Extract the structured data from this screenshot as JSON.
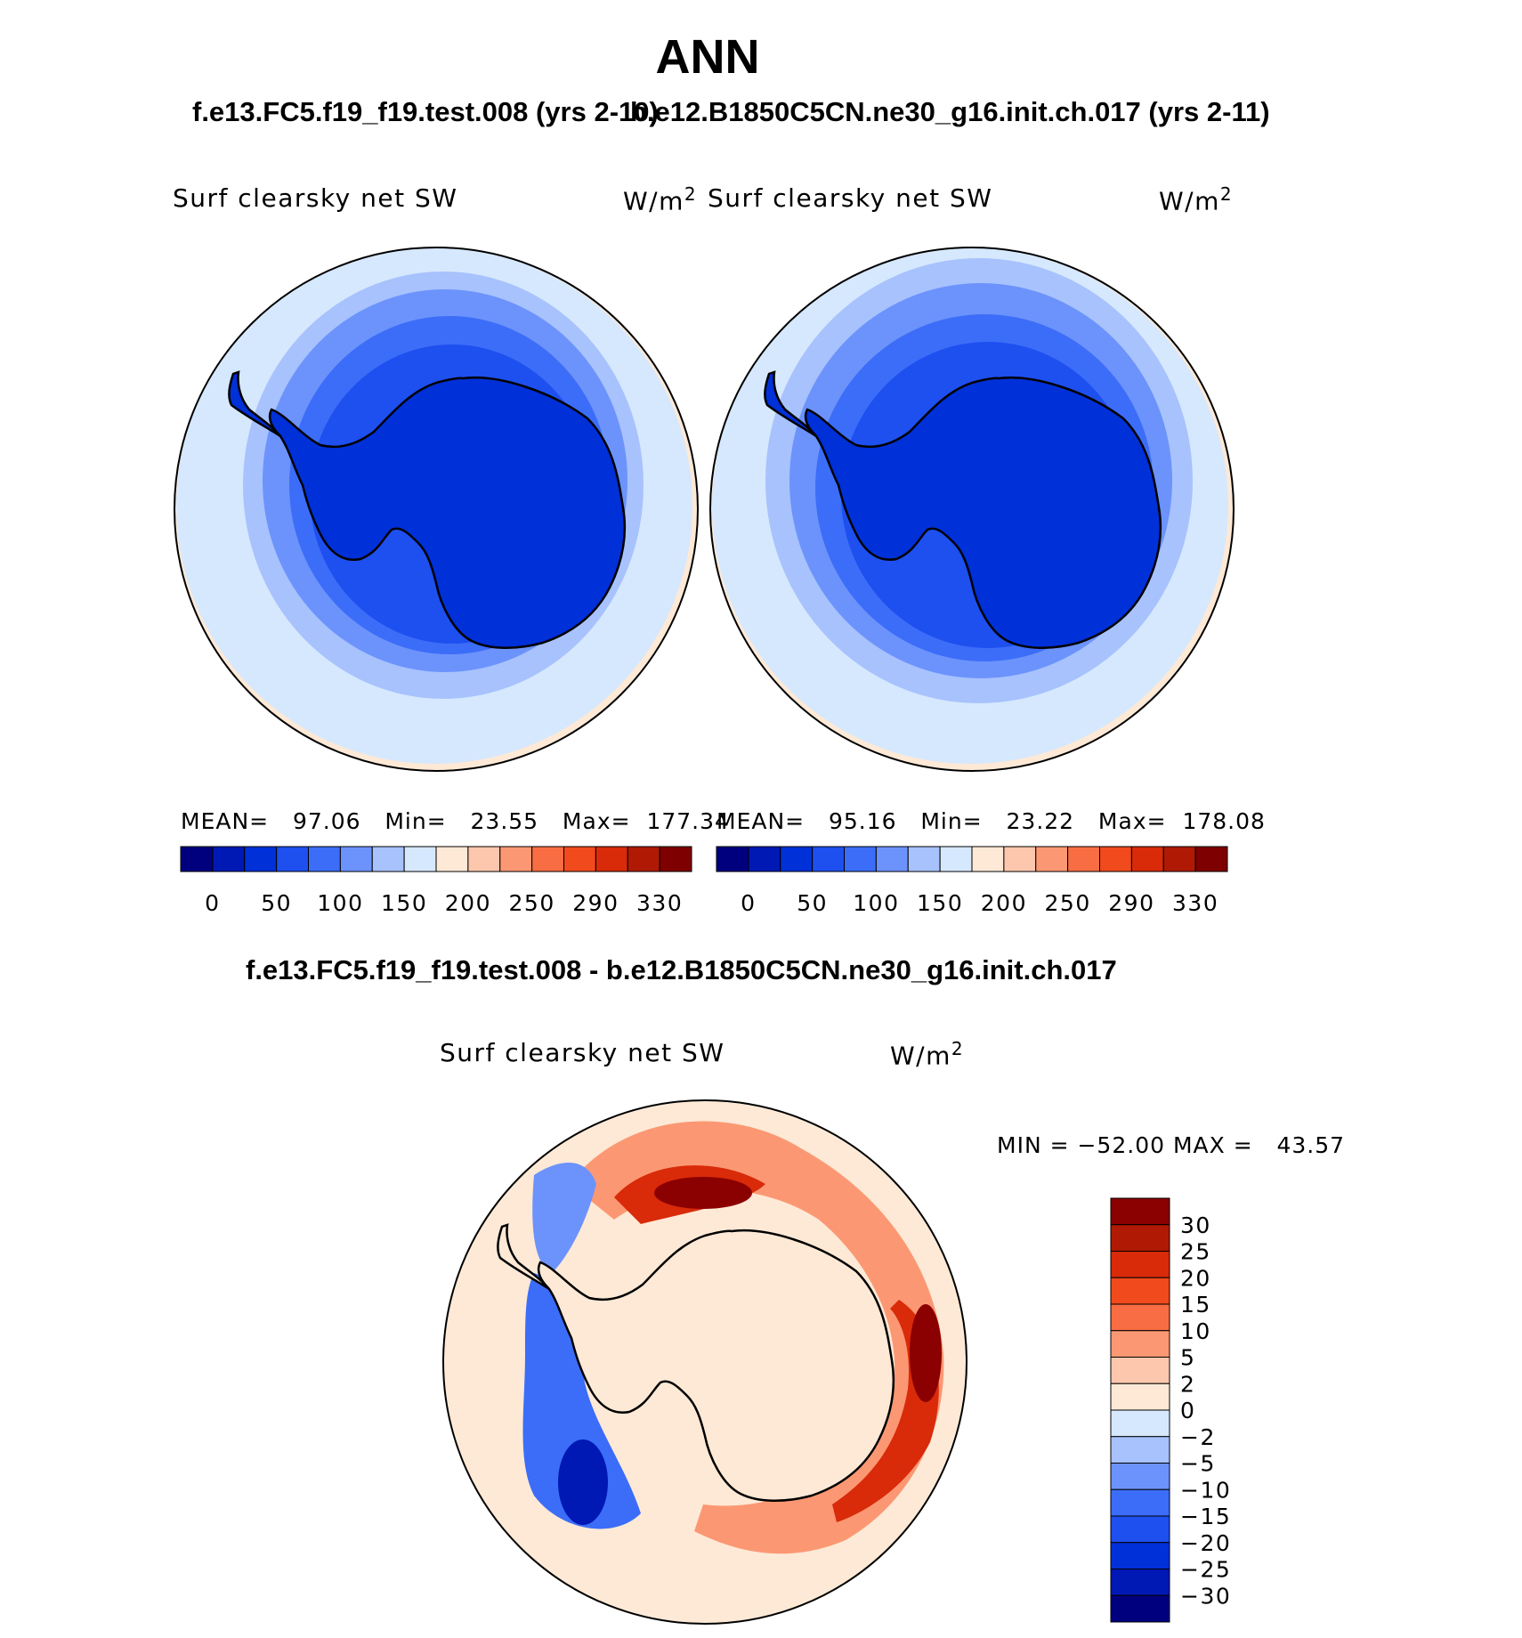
{
  "main_title": "ANN",
  "case_titles": {
    "left": "f.e13.FC5.f19_f19.test.008 (yrs 2-10)",
    "right": "b.e12.B1850C5CN.ne30_g16.init.ch.017 (yrs 2-11)"
  },
  "diff_title": "f.e13.FC5.f19_f19.test.008 - b.e12.B1850C5CN.ne30_g16.init.ch.017",
  "panels": [
    {
      "variable": "Surf clearsky net SW",
      "units": "W/m",
      "units_sup": "2",
      "stats": "MEAN=   97.06   Min=   23.55   Max=  177.34"
    },
    {
      "variable": "Surf clearsky net SW",
      "units": "W/m",
      "units_sup": "2",
      "stats": "MEAN=   95.16   Min=   23.22   Max=  178.08"
    }
  ],
  "diff_panel": {
    "variable": "Surf clearsky net SW",
    "units": "W/m",
    "units_sup": "2",
    "minmax": "MIN = −52.00 MAX =   43.57"
  },
  "colors": {
    "abs_scale": [
      "#00007f",
      "#0018b4",
      "#0030d8",
      "#1e4fef",
      "#3c6df8",
      "#6c93fb",
      "#a7c2fd",
      "#d6e8fd",
      "#fde9d6",
      "#fdc7ad",
      "#fb9873",
      "#f86d43",
      "#f04a1d",
      "#d92a0a",
      "#b01a04",
      "#7f0000"
    ],
    "diff_scale_top_to_bottom": [
      "#8b0000",
      "#b01a04",
      "#d92a0a",
      "#f04a1d",
      "#f86d43",
      "#fb9873",
      "#fdc7ad",
      "#fde9d6",
      "#d6e8fd",
      "#a7c2fd",
      "#6c93fb",
      "#3c6df8",
      "#1e4fef",
      "#0030d8",
      "#0018b4",
      "#00007f"
    ],
    "coastline": "#000000",
    "map_border": "#000000"
  },
  "chart_data": {
    "type": "map",
    "projection": "south polar stereographic",
    "field": "Surf clearsky net SW (W/m2)",
    "panels": [
      {
        "case": "f.e13.FC5.f19_f19.test.008 (yrs 2-10)",
        "mean": 97.06,
        "min": 23.55,
        "max": 177.34
      },
      {
        "case": "b.e12.B1850C5CN.ne30_g16.init.ch.017 (yrs 2-11)",
        "mean": 95.16,
        "min": 23.22,
        "max": 178.08
      },
      {
        "case": "difference",
        "min": -52.0,
        "max": 43.57
      }
    ],
    "abs_colorbar_labels": [
      "0",
      "50",
      "100",
      "150",
      "200",
      "250",
      "290",
      "330"
    ],
    "diff_colorbar_labels": [
      "30",
      "25",
      "20",
      "15",
      "10",
      "5",
      "2",
      "0",
      "−2",
      "−5",
      "−10",
      "−15",
      "−20",
      "−25",
      "−30"
    ]
  }
}
